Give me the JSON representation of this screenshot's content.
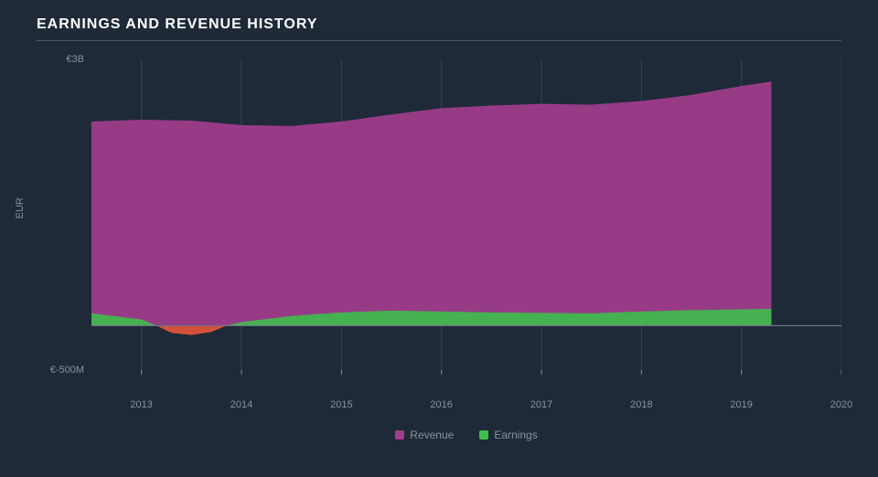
{
  "chart": {
    "type": "area",
    "title": "EARNINGS AND REVENUE HISTORY",
    "background_color": "#1e2a38",
    "title_color": "#ffffff",
    "title_fontsize": 16,
    "title_letter_spacing": 1,
    "underline_color": "#4a5560",
    "grid_color": "#3a4450",
    "axis_label_color": "#8a939c",
    "axis_fontsize": 11,
    "x": {
      "min": 2012.5,
      "max": 2020,
      "ticks": [
        2013,
        2014,
        2015,
        2016,
        2017,
        2018,
        2019,
        2020
      ]
    },
    "y": {
      "label": "EUR",
      "min": -500,
      "max": 3000,
      "ticks": [
        {
          "v": 3000,
          "label": "€3B"
        },
        {
          "v": -500,
          "label": "€-500M"
        }
      ],
      "zero_line": true,
      "zero_line_color": "#6a7480"
    },
    "series": {
      "revenue": {
        "label": "Revenue",
        "color": "#a23d8e",
        "opacity": 0.92,
        "points": [
          [
            2012.5,
            2300
          ],
          [
            2013,
            2320
          ],
          [
            2013.5,
            2310
          ],
          [
            2014,
            2260
          ],
          [
            2014.5,
            2250
          ],
          [
            2015,
            2300
          ],
          [
            2015.5,
            2380
          ],
          [
            2016,
            2450
          ],
          [
            2016.5,
            2480
          ],
          [
            2017,
            2500
          ],
          [
            2017.5,
            2490
          ],
          [
            2018,
            2530
          ],
          [
            2018.5,
            2600
          ],
          [
            2019,
            2700
          ],
          [
            2019.3,
            2750
          ]
        ]
      },
      "earnings_pos": {
        "label": "Earnings",
        "color": "#3dbf4b",
        "opacity": 0.9,
        "points": [
          [
            2012.5,
            140
          ],
          [
            2013,
            70
          ],
          [
            2013.15,
            0
          ],
          [
            2013.85,
            0
          ],
          [
            2014,
            40
          ],
          [
            2014.5,
            110
          ],
          [
            2015,
            150
          ],
          [
            2015.5,
            170
          ],
          [
            2016,
            160
          ],
          [
            2016.5,
            150
          ],
          [
            2017,
            145
          ],
          [
            2017.5,
            140
          ],
          [
            2018,
            160
          ],
          [
            2018.5,
            175
          ],
          [
            2019,
            185
          ],
          [
            2019.3,
            190
          ]
        ]
      },
      "earnings_neg": {
        "color": "#e8553a",
        "opacity": 0.9,
        "points": [
          [
            2013.15,
            0
          ],
          [
            2013.3,
            -80
          ],
          [
            2013.5,
            -105
          ],
          [
            2013.7,
            -70
          ],
          [
            2013.85,
            0
          ]
        ]
      }
    },
    "legend": [
      {
        "key": "revenue",
        "label": "Revenue",
        "color": "#a23d8e"
      },
      {
        "key": "earnings",
        "label": "Earnings",
        "color": "#3dbf4b"
      }
    ]
  }
}
